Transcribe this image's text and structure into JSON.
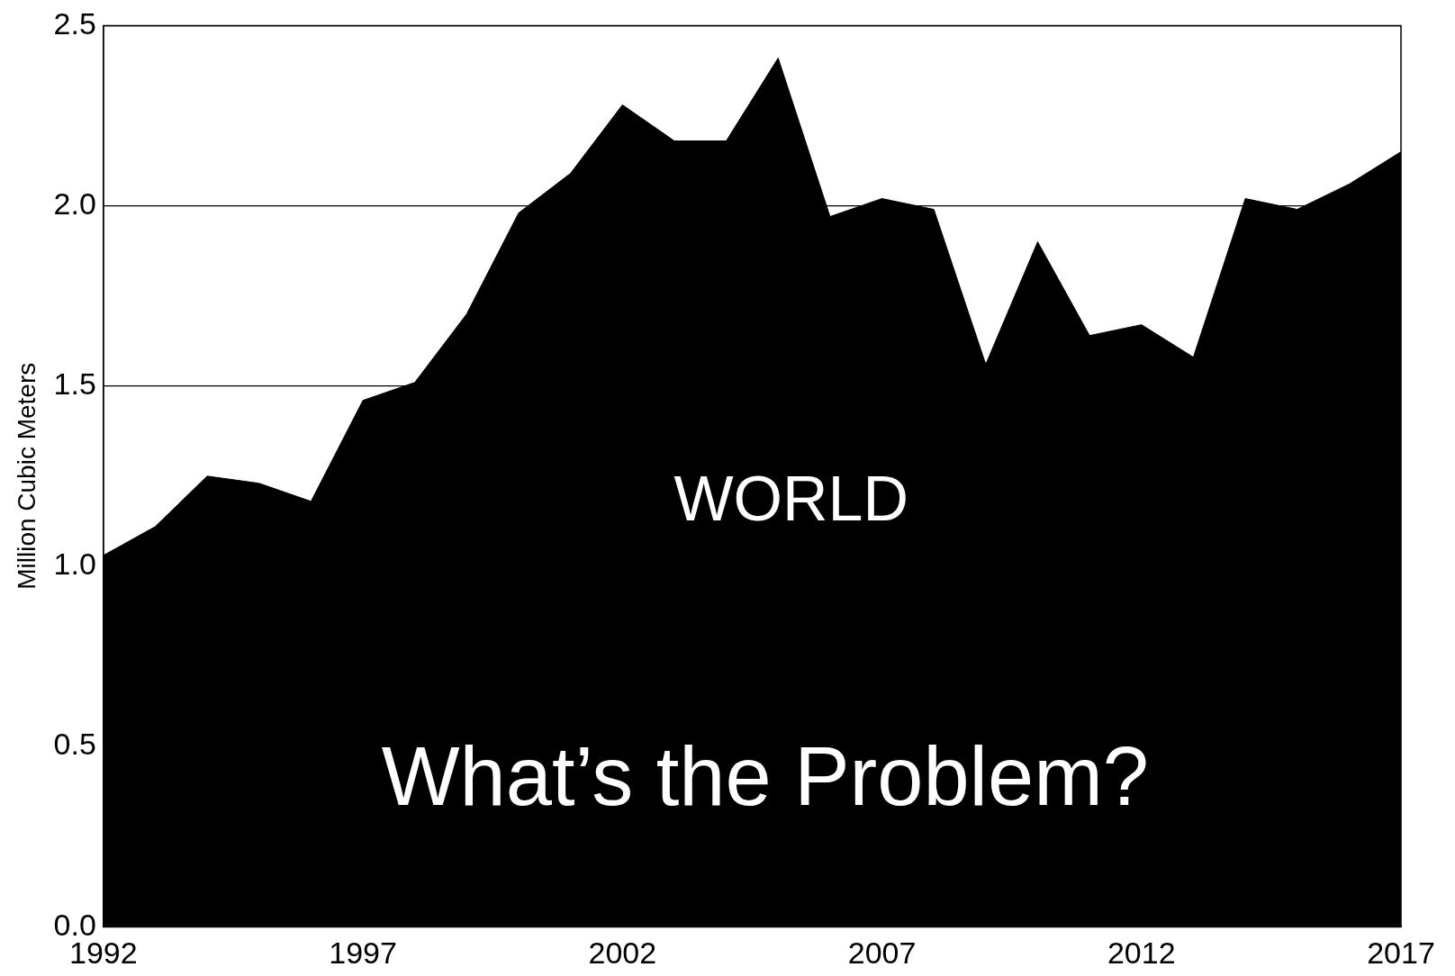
{
  "chart_data": {
    "type": "area",
    "ylabel": "Million Cubic Meters",
    "x": [
      1992,
      1993,
      1994,
      1995,
      1996,
      1997,
      1998,
      1999,
      2000,
      2001,
      2002,
      2003,
      2004,
      2005,
      2006,
      2007,
      2008,
      2009,
      2010,
      2011,
      2012,
      2013,
      2014,
      2015,
      2016,
      2017
    ],
    "series": [
      {
        "color": "#000000",
        "values": [
          1.03,
          1.11,
          1.25,
          1.23,
          1.18,
          1.46,
          1.51,
          1.7,
          1.98,
          2.09,
          2.28,
          2.18,
          2.18,
          2.41,
          1.97,
          2.02,
          1.99,
          1.56,
          1.9,
          1.64,
          1.67,
          1.58,
          2.02,
          1.99,
          2.06,
          2.15
        ]
      }
    ],
    "xlim": [
      1992,
      2017
    ],
    "xticks": [
      1992,
      1997,
      2002,
      2007,
      2012,
      2017
    ],
    "ylim": [
      0,
      2.5
    ],
    "yticks": [
      {
        "value": 0,
        "label": "0.0"
      },
      {
        "value": 0.5,
        "label": "0.5"
      },
      {
        "value": 1,
        "label": "1.0"
      },
      {
        "value": 1.5,
        "label": "1.5"
      },
      {
        "value": 2,
        "label": "2.0"
      },
      {
        "value": 2.5,
        "label": "2.5"
      }
    ],
    "grid": "y",
    "legend": false,
    "annotations": [
      "WORLD",
      "What’s the Problem?"
    ]
  }
}
